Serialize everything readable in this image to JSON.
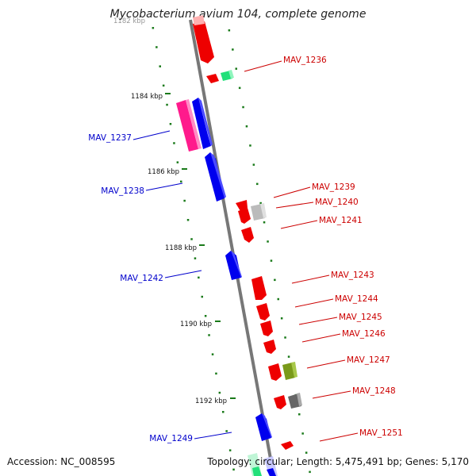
{
  "title": "Mycobacterium avium 104, complete genome",
  "accession": "Accession: NC_008595",
  "topology": "Topology: circular; Length: 5,475,491 bp; Genes: 5,170",
  "ticks": [
    {
      "label": "1182 kbp",
      "faded": true
    },
    {
      "label": "1184 kbp",
      "faded": false
    },
    {
      "label": "1186 kbp",
      "faded": false
    },
    {
      "label": "1188 kbp",
      "faded": false
    },
    {
      "label": "1190 kbp",
      "faded": false
    },
    {
      "label": "1192 kbp",
      "faded": false
    }
  ],
  "left_labels": [
    "MAV_1237",
    "MAV_1238",
    "MAV_1242",
    "MAV_1249"
  ],
  "right_labels": [
    "MAV_1236",
    "MAV_1239",
    "MAV_1240",
    "MAV_1241",
    "MAV_1243",
    "MAV_1244",
    "MAV_1245",
    "MAV_1246",
    "MAV_1247",
    "MAV_1248",
    "MAV_1251"
  ],
  "colors": {
    "forward_label": "#0000cc",
    "reverse_label": "#cc0000",
    "red_gene": "#ee0000",
    "blue_gene": "#0000ee",
    "pink_gene": "#ff1a8c",
    "backbone": "#7a7a7a",
    "tick": "#1a7a1a",
    "green_gene": "#00dd66",
    "olive_gene": "#7a9a1a",
    "grey_gene": "#aaaaaa",
    "dark_grey_gene": "#666666"
  }
}
